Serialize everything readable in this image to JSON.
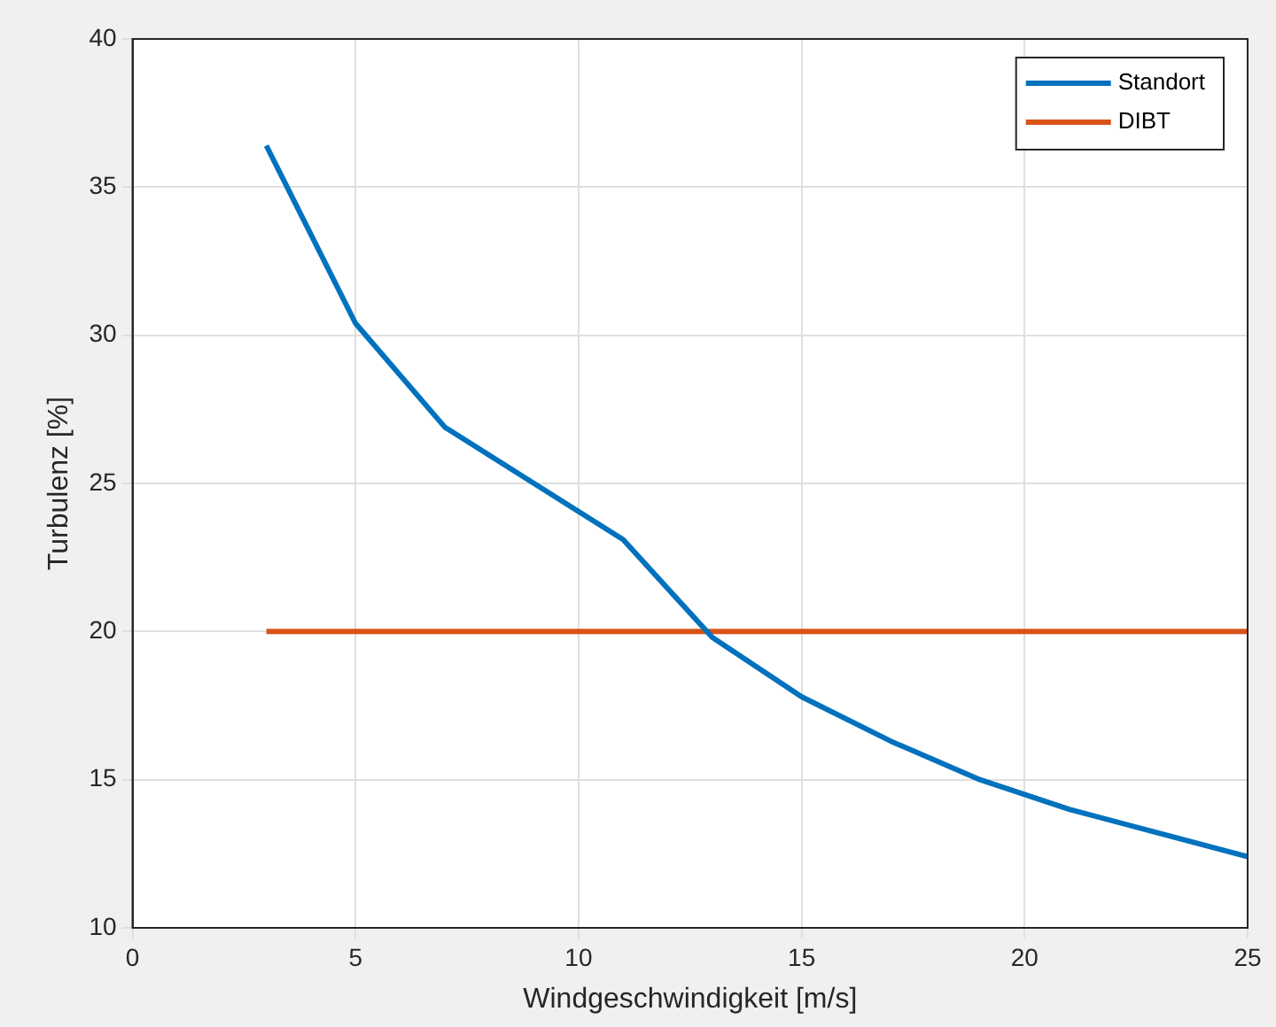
{
  "chart_data": {
    "type": "line",
    "xlabel": "Windgeschwindigkeit [m/s]",
    "ylabel": "Turbulenz [%]",
    "xlim": [
      0,
      25
    ],
    "xticks": [
      0,
      5,
      10,
      15,
      20,
      25
    ],
    "ylim": [
      10,
      40
    ],
    "yticks": [
      10,
      15,
      20,
      25,
      30,
      35,
      40
    ],
    "grid": true,
    "legend": "top right",
    "marker": "none",
    "line_style": "solid",
    "series": [
      {
        "name": "Standort",
        "color": "#0072bd",
        "x": [
          3,
          5,
          7,
          9,
          11,
          13,
          15,
          17,
          19,
          21,
          23,
          25
        ],
        "values": [
          36.4,
          30.4,
          26.9,
          25.0,
          23.1,
          19.8,
          17.8,
          16.3,
          15.0,
          14.0,
          13.2,
          12.4
        ]
      },
      {
        "name": "DIBT",
        "color": "#d95319",
        "x": [
          3,
          25
        ],
        "values": [
          20,
          20
        ]
      }
    ]
  }
}
